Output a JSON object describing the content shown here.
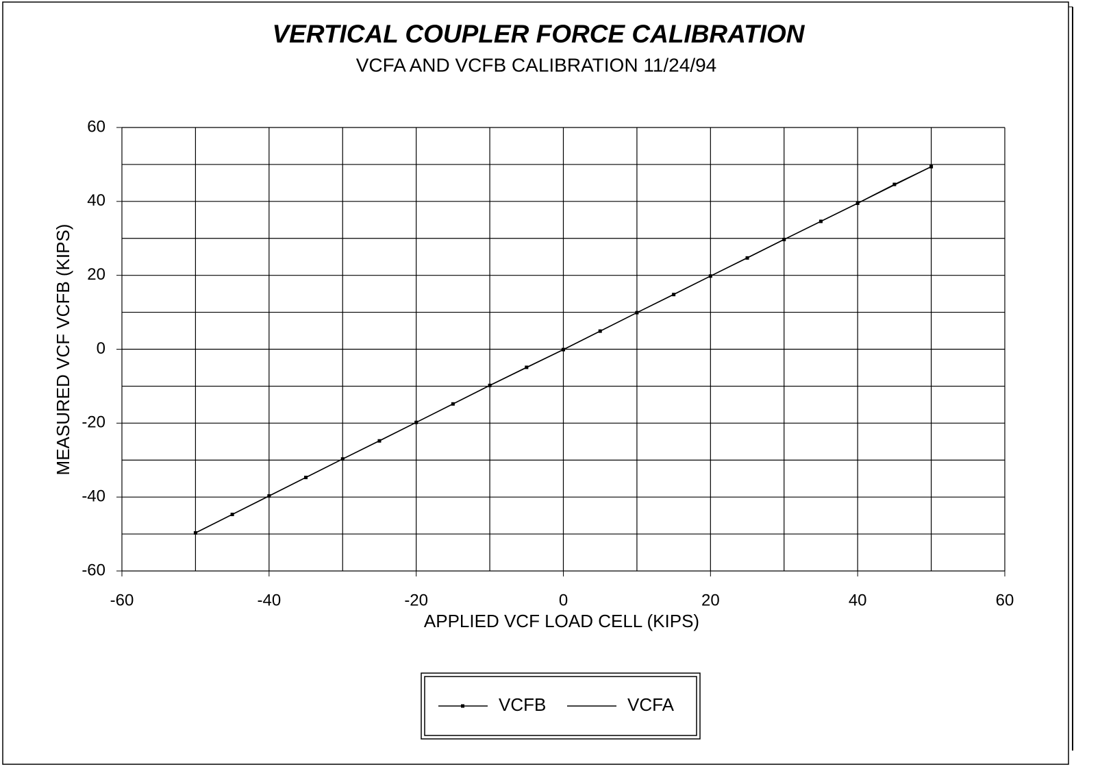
{
  "chart_data": {
    "type": "line",
    "title": "VERTICAL COUPLER FORCE CALIBRATION",
    "subtitle": "VCFA AND VCFB CALIBRATION 11/24/94",
    "x_label": "APPLIED VCF LOAD CELL (KIPS)",
    "y_label": "MEASURED VCF VCFB (KIPS)",
    "xlim": [
      -60,
      60
    ],
    "ylim": [
      -60,
      60
    ],
    "xticks": [
      -60,
      -40,
      -20,
      0,
      20,
      40,
      60
    ],
    "yticks": [
      -60,
      -40,
      -20,
      0,
      20,
      40,
      60
    ],
    "grid_x": [
      -60,
      -50,
      -40,
      -30,
      -20,
      -10,
      0,
      10,
      20,
      30,
      40,
      50,
      60
    ],
    "grid_y": [
      -60,
      -50,
      -40,
      -30,
      -20,
      -10,
      0,
      10,
      20,
      30,
      40,
      50,
      60
    ],
    "legend": "bottom",
    "series": [
      {
        "name": "VCFB",
        "color": "#000000",
        "markers": true,
        "x": [
          -50,
          -45,
          -40,
          -35,
          -30,
          -25,
          -20,
          -15,
          -10,
          -5,
          0,
          5,
          10,
          15,
          20,
          25,
          30,
          35,
          40,
          45,
          50
        ],
        "values": [
          -49.7,
          -44.7,
          -39.7,
          -34.7,
          -29.7,
          -24.8,
          -19.8,
          -14.8,
          -9.8,
          -4.9,
          -0.1,
          4.9,
          9.9,
          14.8,
          19.8,
          24.7,
          29.7,
          34.6,
          39.5,
          44.6,
          49.4
        ]
      },
      {
        "name": "VCFA",
        "color": "#000000",
        "markers": false,
        "x": [
          -50,
          -40,
          -30,
          -20,
          -10,
          0,
          10,
          20,
          30,
          40,
          50
        ],
        "values": [
          -49.7,
          -39.7,
          -29.7,
          -19.8,
          -9.8,
          -0.1,
          9.9,
          19.8,
          29.7,
          39.5,
          49.4
        ]
      }
    ]
  }
}
